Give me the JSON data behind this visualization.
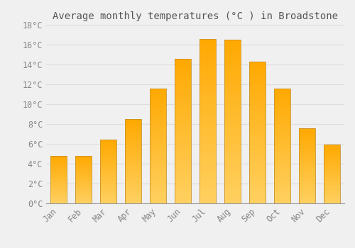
{
  "title": "Average monthly temperatures (°C ) in Broadstone",
  "months": [
    "Jan",
    "Feb",
    "Mar",
    "Apr",
    "May",
    "Jun",
    "Jul",
    "Aug",
    "Sep",
    "Oct",
    "Nov",
    "Dec"
  ],
  "values": [
    4.8,
    4.8,
    6.4,
    8.5,
    11.6,
    14.6,
    16.6,
    16.5,
    14.3,
    11.6,
    7.6,
    5.9
  ],
  "bar_color_bottom": "#FFD060",
  "bar_color_top": "#FFA800",
  "bar_edge_color": "#C8922A",
  "ylim": [
    0,
    18
  ],
  "yticks": [
    0,
    2,
    4,
    6,
    8,
    10,
    12,
    14,
    16,
    18
  ],
  "ytick_labels": [
    "0°C",
    "2°C",
    "4°C",
    "6°C",
    "8°C",
    "10°C",
    "12°C",
    "14°C",
    "16°C",
    "18°C"
  ],
  "background_color": "#F0F0F0",
  "grid_color": "#DDDDDD",
  "title_fontsize": 10,
  "tick_fontsize": 8.5,
  "tick_color": "#888888",
  "bar_width": 0.65,
  "gradient_steps": 80
}
